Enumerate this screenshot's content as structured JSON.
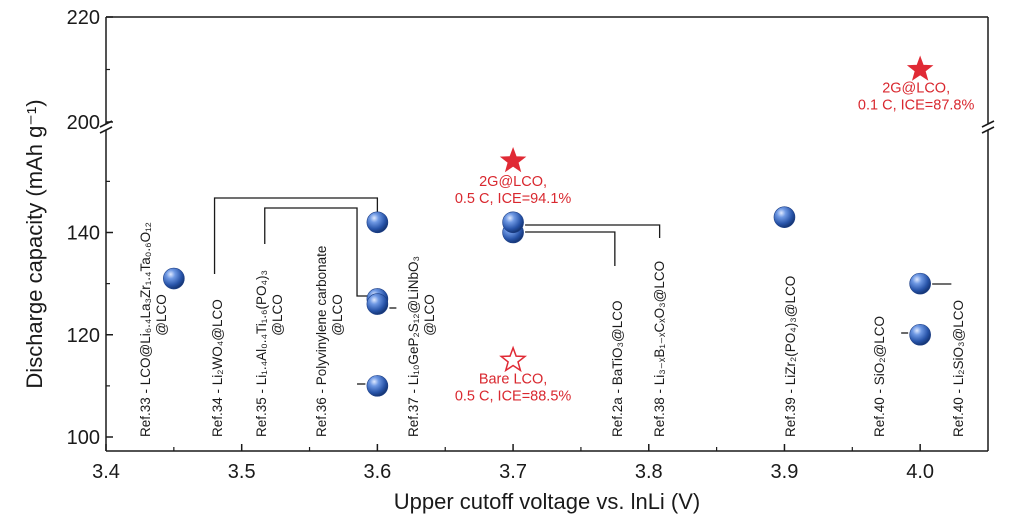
{
  "chart_data": {
    "type": "scatter",
    "title": "",
    "xlabel": "Upper cutoff voltage vs. lnLi (V)",
    "ylabel": "Discharge capacity (mAh g⁻¹)",
    "xlim": [
      3.4,
      4.05
    ],
    "ylim_lower": [
      100,
      150
    ],
    "ylim_upper": [
      200,
      220
    ],
    "axis_break": true,
    "xticks": [
      "3.4",
      "3.5",
      "3.6",
      "3.7",
      "3.8",
      "3.9",
      "4.0"
    ],
    "yticks": [
      "100",
      "120",
      "140",
      "200",
      "220"
    ],
    "references": [
      {
        "x": 3.45,
        "y": 131,
        "label": [
          "Ref.33 - LCO@Li₆.₄La₃Zr₁.₄Ta₀.₆O₁₂",
          "@LCO"
        ]
      },
      {
        "x": 3.6,
        "y": 142,
        "label": [
          "Ref.34 - Li₂WO₄@LCO"
        ]
      },
      {
        "x": 3.6,
        "y": 127,
        "label": [
          "Ref.35 - Li₁.₄Al₀.₄Ti₁.₆(PO₄)₃",
          "@LCO"
        ]
      },
      {
        "x": 3.6,
        "y": 110,
        "label": [
          "Ref.36 - Polyvinylene carbonate",
          "@LCO"
        ]
      },
      {
        "x": 3.6,
        "y": 126,
        "label": [
          "Ref.37 - Li₁₀GeP₂S₁₂@LiNbO₃",
          "@LCO"
        ]
      },
      {
        "x": 3.7,
        "y": 140,
        "label": [
          "Ref.2a - BaTiO₃@LCO"
        ]
      },
      {
        "x": 3.7,
        "y": 142,
        "label": [
          "Ref.38 - Li₃₋ₓB₁₋ₓCₓO₃@LCO"
        ]
      },
      {
        "x": 3.9,
        "y": 143,
        "label": [
          "Ref.39 - LiZr₂(PO₄)₃@LCO"
        ]
      },
      {
        "x": 4.0,
        "y": 120,
        "label": [
          "Ref.40 - SiO₂@LCO"
        ]
      },
      {
        "x": 4.0,
        "y": 130,
        "label": [
          "Ref.40 - Li₂SiO₃@LCO"
        ]
      }
    ],
    "highlights": [
      {
        "x": 3.7,
        "y": 154,
        "marker": "star-filled",
        "label": [
          "2G@LCO,",
          "0.5 C, ICE=94.1%"
        ]
      },
      {
        "x": 3.7,
        "y": 115,
        "marker": "star-open",
        "label": [
          "Bare LCO,",
          "0.5 C, ICE=88.5%"
        ]
      },
      {
        "x": 4.0,
        "y": 210,
        "marker": "star-filled",
        "label": [
          "2G@LCO,",
          "0.1 C, ICE=87.8%"
        ]
      }
    ],
    "colors": {
      "reference": "#2f5fb3",
      "highlight": "#e02a35",
      "axis": "#1a1a1a"
    }
  }
}
